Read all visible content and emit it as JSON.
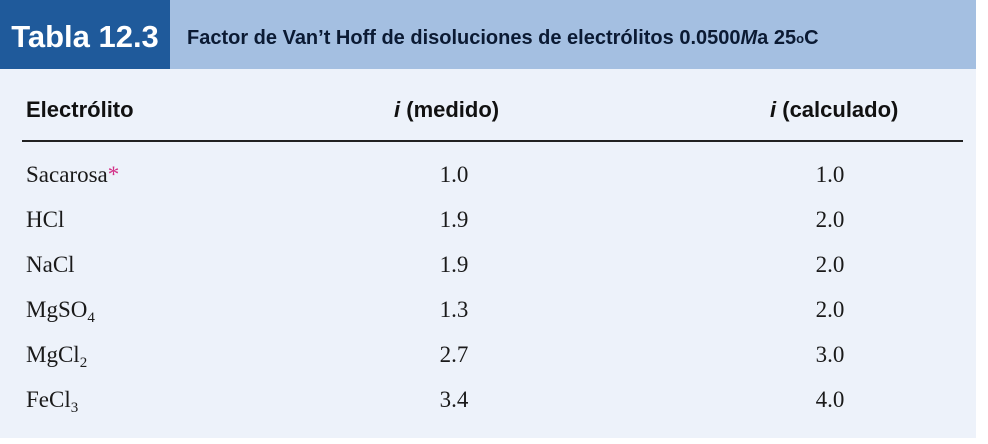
{
  "tag": "Tabla 12.3",
  "title": {
    "before": "Factor de Van’t Hoff de disoluciones de electrólitos 0.0500 ",
    "molar": "M",
    "after_molar": " a 25",
    "degree": "o",
    "unit": "C"
  },
  "columns": {
    "electrolyte": "Electrólito",
    "measured_i": "i",
    "measured_rest": " (medido)",
    "calculated_i": "i",
    "calculated_rest": " (calculado)"
  },
  "footnote_mark": "*",
  "rows": [
    {
      "base": "Sacarosa",
      "sub": "",
      "measured": "1.0",
      "calculated": "1.0"
    },
    {
      "base": "HCl",
      "sub": "",
      "measured": "1.9",
      "calculated": "2.0"
    },
    {
      "base": "NaCl",
      "sub": "",
      "measured": "1.9",
      "calculated": "2.0"
    },
    {
      "base": "MgSO",
      "sub": "4",
      "measured": "1.3",
      "calculated": "2.0"
    },
    {
      "base": "MgCl",
      "sub": "2",
      "measured": "2.7",
      "calculated": "3.0"
    },
    {
      "base": "FeCl",
      "sub": "3",
      "measured": "3.4",
      "calculated": "4.0"
    }
  ]
}
